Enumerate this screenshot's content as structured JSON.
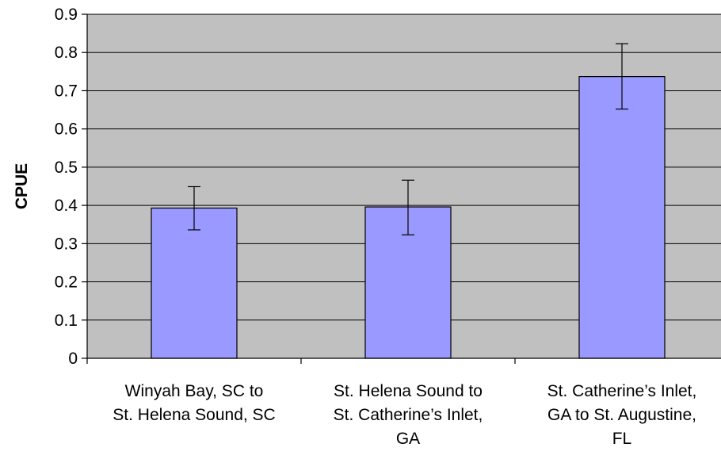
{
  "chart_data": {
    "type": "bar",
    "title": "",
    "xlabel": "",
    "ylabel": "CPUE",
    "categories": [
      [
        "Winyah Bay, SC to",
        "St. Helena Sound, SC"
      ],
      [
        "St. Helena Sound to",
        "St. Catherine’s Inlet,",
        "GA"
      ],
      [
        "St. Catherine’s Inlet,",
        "GA to St. Augustine,",
        "FL"
      ]
    ],
    "values": [
      0.393,
      0.396,
      0.737
    ],
    "error_low": [
      0.336,
      0.323,
      0.652
    ],
    "error_high": [
      0.449,
      0.466,
      0.823
    ],
    "ylim": [
      0,
      0.9
    ],
    "yticks": [
      0,
      0.1,
      0.2,
      0.3,
      0.4,
      0.5,
      0.6,
      0.7,
      0.8,
      0.9
    ],
    "ytick_labels": [
      "0",
      "0.1",
      "0.2",
      "0.3",
      "0.4",
      "0.5",
      "0.6",
      "0.7",
      "0.8",
      "0.9"
    ],
    "grid": true,
    "legend": "none",
    "colors": {
      "plot_background": "#c0c0c0",
      "bar_fill": "#9999ff",
      "bar_stroke": "#000000",
      "gridline": "#000000",
      "page_background": "#ffffff"
    }
  }
}
